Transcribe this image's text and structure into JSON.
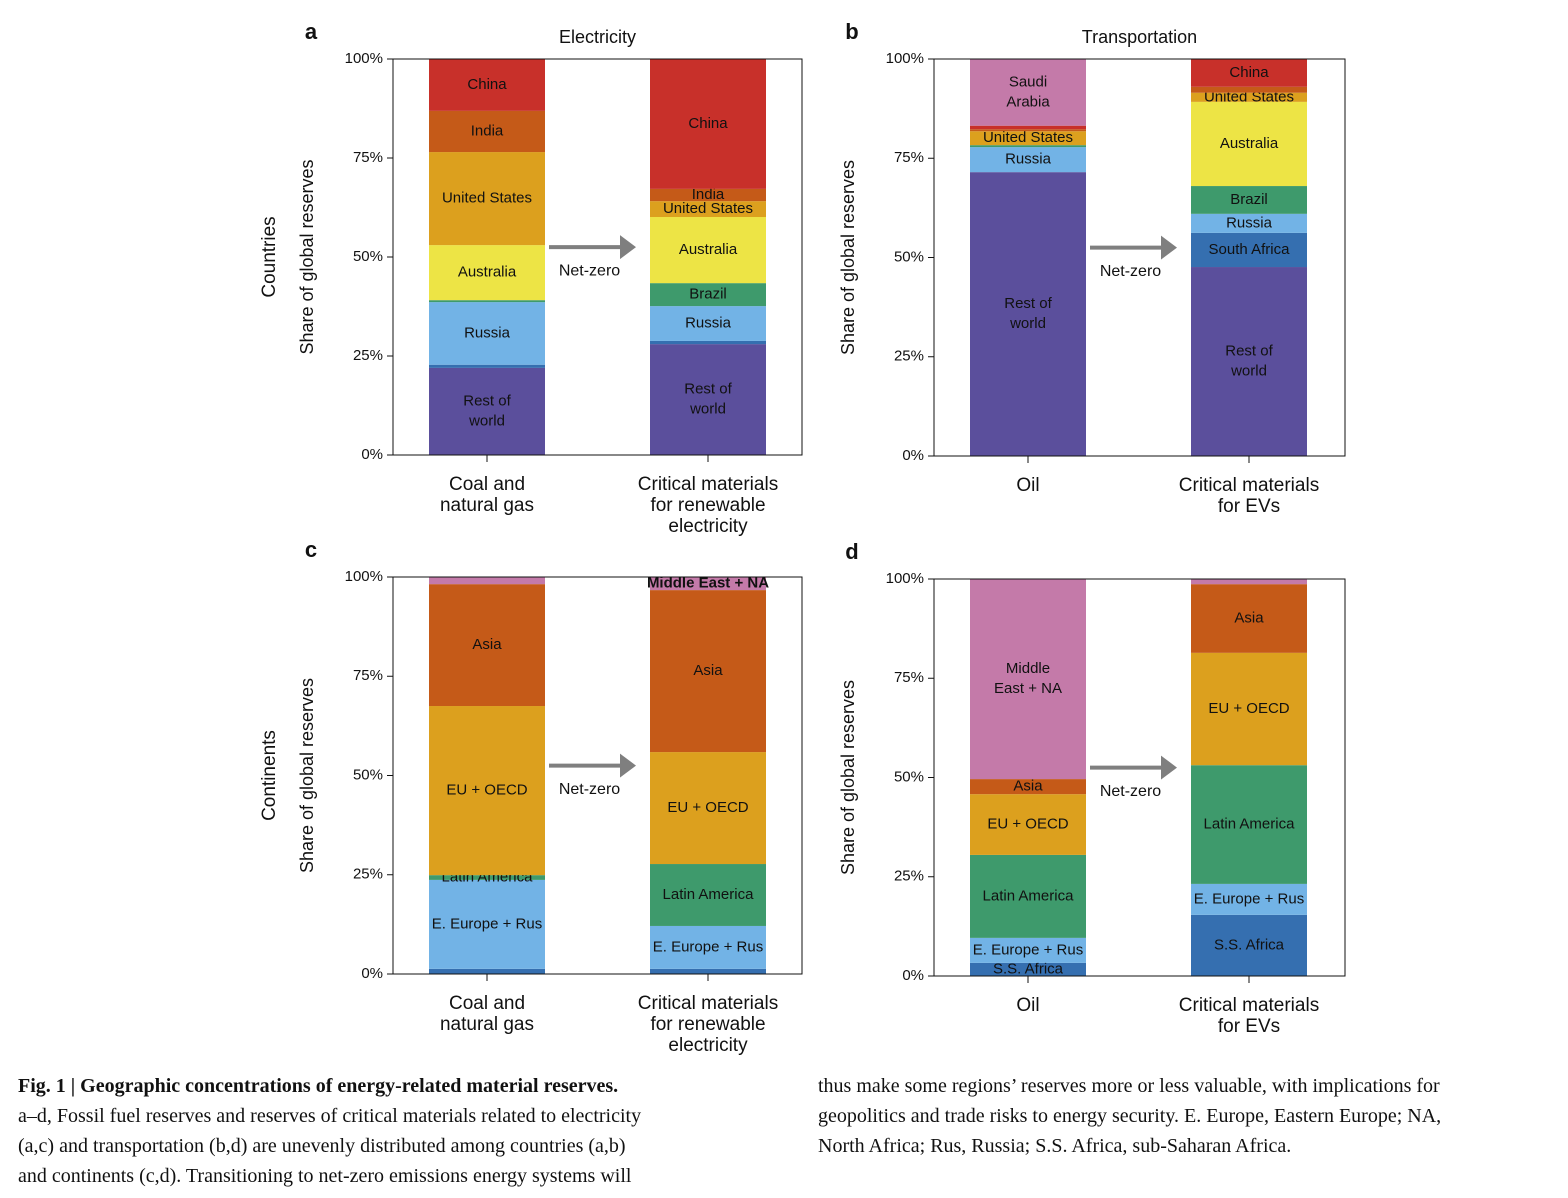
{
  "chart_data": [
    {
      "type": "bar",
      "stacked": true,
      "panel": "a",
      "title": "Electricity",
      "row_label": "Countries",
      "ylabel": "Share of global reserves",
      "annotation": "Net-zero",
      "categories": [
        "Coal and\nnatural gas",
        "Critical materials\nfor renewable\nelectricity"
      ],
      "ylim": [
        0,
        100
      ],
      "yticks": [
        {
          "value": 0,
          "label": "0%"
        },
        {
          "value": 25,
          "label": "25%"
        },
        {
          "value": 50,
          "label": "50%"
        },
        {
          "value": 75,
          "label": "75%"
        },
        {
          "value": 100,
          "label": "100%"
        }
      ],
      "series": [
        {
          "name": "Rest of\nworld",
          "color": "#5b4f9c",
          "label_color": "#ffffff",
          "values": [
            22,
            28
          ]
        },
        {
          "color": "#356fb0",
          "values": [
            0.8,
            0.8
          ]
        },
        {
          "name": "Russia",
          "color": "#72b3e6",
          "label_color": "#111111",
          "values": [
            15.8,
            8.8
          ]
        },
        {
          "color": "#3e9a6c",
          "values": [
            0.5,
            null
          ]
        },
        {
          "name": "Brazil",
          "color": "#3e9a6c",
          "label_color": "#111111",
          "values": [
            null,
            5.8
          ]
        },
        {
          "name": "Australia",
          "color": "#ede445",
          "label_color": "#111111",
          "values": [
            13.9,
            16.7
          ]
        },
        {
          "name": "United States",
          "color": "#dca01e",
          "label_color": "#111111",
          "values": [
            23.5,
            4
          ]
        },
        {
          "name": "India",
          "color": "#c55a18",
          "label_color": "#ffffff",
          "values": [
            10.4,
            3.1
          ]
        },
        {
          "name": "China",
          "color": "#c8302a",
          "label_color": "#ffffff",
          "values": [
            13.1,
            32.8
          ]
        }
      ]
    },
    {
      "type": "bar",
      "stacked": true,
      "panel": "b",
      "title": "Transportation",
      "ylabel": "Share of global reserves",
      "annotation": "Net-zero",
      "categories": [
        "Oil",
        "Critical materials\nfor EVs"
      ],
      "ylim": [
        0,
        100
      ],
      "yticks": [
        {
          "value": 0,
          "label": "0%"
        },
        {
          "value": 25,
          "label": "25%"
        },
        {
          "value": 50,
          "label": "50%"
        },
        {
          "value": 75,
          "label": "75%"
        },
        {
          "value": 100,
          "label": "100%"
        }
      ],
      "series": [
        {
          "name": "Rest of\nworld",
          "color": "#5b4f9c",
          "label_color": "#ffffff",
          "values": [
            71.5,
            47.6
          ]
        },
        {
          "name": "South Africa",
          "color": "#356fb0",
          "label_color": "#ffffff",
          "values": [
            null,
            8.6
          ]
        },
        {
          "name": "Russia",
          "color": "#72b3e6",
          "label_color": "#111111",
          "values": [
            6.3,
            4.8
          ]
        },
        {
          "color": "#3e9a6c",
          "values": [
            0.5,
            null
          ]
        },
        {
          "name": "Brazil",
          "color": "#3e9a6c",
          "label_color": "#111111",
          "values": [
            null,
            7
          ]
        },
        {
          "name": "Australia",
          "color": "#ede445",
          "label_color": "#111111",
          "values": [
            null,
            21.2
          ]
        },
        {
          "name": "United States",
          "color": "#dca01e",
          "label_color": "#111111",
          "values": [
            3.5,
            2.3
          ]
        },
        {
          "color": "#c55a18",
          "values": [
            0.5,
            1.5
          ]
        },
        {
          "color": "#c8302a",
          "values": [
            0.9,
            null
          ]
        },
        {
          "name": "China",
          "color": "#c8302a",
          "label_color": "#ffffff",
          "values": [
            null,
            7
          ]
        },
        {
          "name": "Saudi\nArabia",
          "color": "#c47aa9",
          "label_color": "#ffffff",
          "values": [
            16.8,
            null
          ]
        }
      ]
    },
    {
      "type": "bar",
      "stacked": true,
      "panel": "c",
      "row_label": "Continents",
      "ylabel": "Share of global reserves",
      "annotation": "Net-zero",
      "categories": [
        "Coal and\nnatural gas",
        "Critical materials\nfor renewable\nelectricity"
      ],
      "ylim": [
        0,
        100
      ],
      "yticks": [
        {
          "value": 0,
          "label": "0%"
        },
        {
          "value": 25,
          "label": "25%"
        },
        {
          "value": 50,
          "label": "50%"
        },
        {
          "value": 75,
          "label": "75%"
        },
        {
          "value": 100,
          "label": "100%"
        }
      ],
      "series": [
        {
          "color": "#356fb0",
          "values": [
            1.3,
            1.3
          ]
        },
        {
          "name": "E. Europe + Rus",
          "color": "#72b3e6",
          "label_color": "#111111",
          "values": [
            22.4,
            10.8
          ]
        },
        {
          "name": "Latin America",
          "color": "#3e9a6c",
          "label_color": "#111111",
          "values": [
            1.2,
            15.6
          ]
        },
        {
          "name": "EU + OECD",
          "color": "#dca01e",
          "label_color": "#111111",
          "values": [
            42.6,
            28.2
          ]
        },
        {
          "name": "Asia",
          "color": "#c55a18",
          "label_color": "#ffffff",
          "values": [
            30.7,
            40.8
          ]
        },
        {
          "color": "#c47aa9",
          "values": [
            1.8,
            null
          ]
        },
        {
          "name": "Middle East + NA",
          "color": "#c47aa9",
          "label_color": "#ffffff",
          "values": [
            null,
            3.3
          ]
        }
      ]
    },
    {
      "type": "bar",
      "stacked": true,
      "panel": "d",
      "ylabel": "Share of global reserves",
      "annotation": "Net-zero",
      "categories": [
        "Oil",
        "Critical materials\nfor EVs"
      ],
      "ylim": [
        0,
        100
      ],
      "yticks": [
        {
          "value": 0,
          "label": "0%"
        },
        {
          "value": 25,
          "label": "25%"
        },
        {
          "value": 50,
          "label": "50%"
        },
        {
          "value": 75,
          "label": "75%"
        },
        {
          "value": 100,
          "label": "100%"
        }
      ],
      "series": [
        {
          "name": "S.S. Africa",
          "color": "#356fb0",
          "label_color": "#ffffff",
          "values": [
            3.3,
            15.4
          ]
        },
        {
          "name": "E. Europe + Rus",
          "color": "#72b3e6",
          "label_color": "#111111",
          "values": [
            6.3,
            7.8
          ]
        },
        {
          "name": "Latin America",
          "color": "#3e9a6c",
          "label_color": "#111111",
          "values": [
            20.9,
            29.9
          ]
        },
        {
          "name": "EU + OECD",
          "color": "#dca01e",
          "label_color": "#111111",
          "values": [
            15.3,
            28.3
          ]
        },
        {
          "name": "Asia",
          "color": "#c55a18",
          "label_color": "#ffffff",
          "values": [
            3.8,
            17.3
          ]
        },
        {
          "name": "Middle\nEast + NA",
          "color": "#c47aa9",
          "label_color": "#ffffff",
          "values": [
            50.4,
            null
          ]
        },
        {
          "color": "#c47aa9",
          "values": [
            null,
            1.3
          ]
        }
      ]
    }
  ],
  "caption": {
    "title": "Fig. 1 | Geographic concentrations of energy-related material reserves.",
    "left": [
      "a–d, Fossil fuel reserves and reserves of critical materials related to electricity",
      "(a,c) and transportation (b,d) are unevenly distributed among countries (a,b)",
      "and continents (c,d). Transitioning to net-zero emissions energy systems will"
    ],
    "right": [
      "thus make some regions’ reserves more or less valuable, with implications for",
      "geopolitics and trade risks to energy security. E. Europe, Eastern Europe; NA,",
      "North Africa; Rus, Russia; S.S. Africa, sub-Saharan Africa."
    ]
  }
}
